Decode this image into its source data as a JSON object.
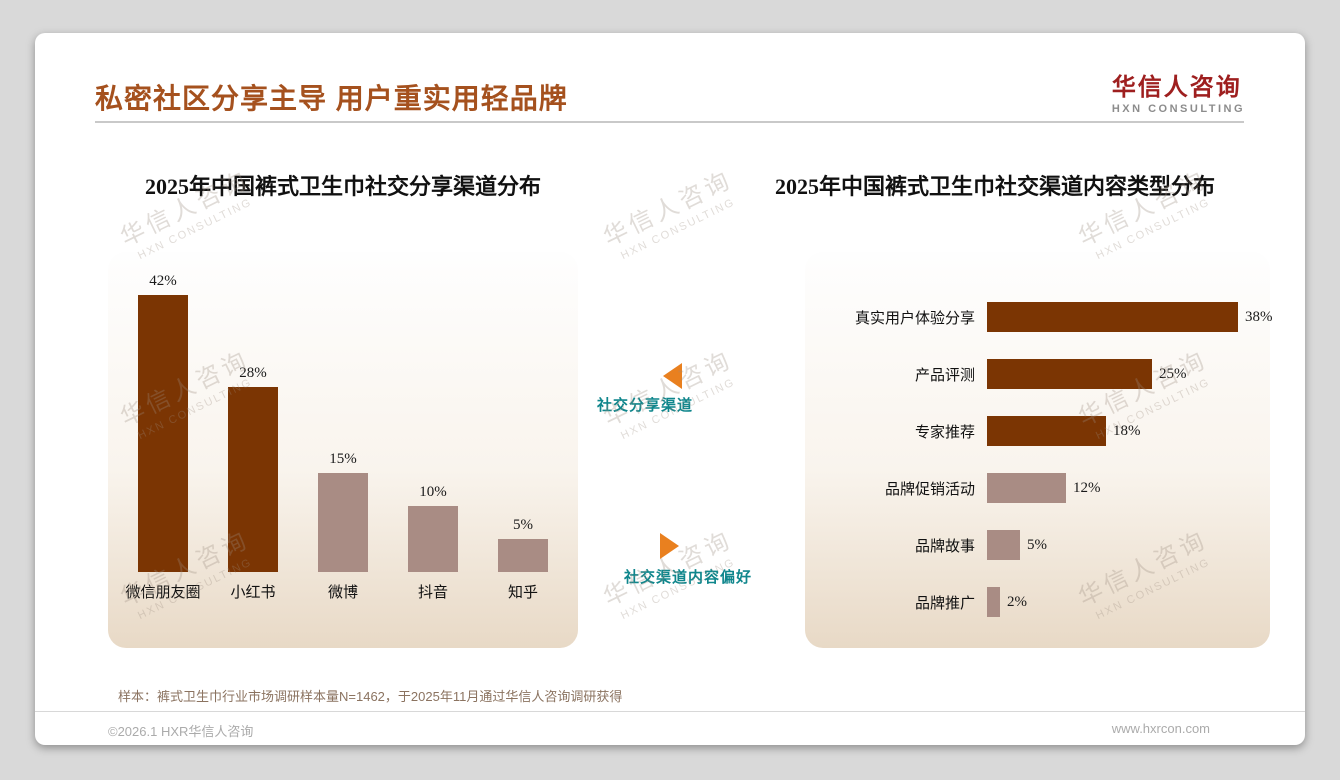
{
  "page": {
    "title": "私密社区分享主导 用户重实用轻品牌",
    "footnote": "样本：裤式卫生巾行业市场调研样本量N=1462，于2025年11月通过华信人咨询调研获得",
    "footer_left": "©2026.1 HXR华信人咨询",
    "footer_right": "www.hxrcon.com"
  },
  "logo": {
    "name": "华信人咨询",
    "subtitle": "HXN CONSULTING"
  },
  "watermark": {
    "line1": "华信人咨询",
    "line2": "HXN CONSULTING"
  },
  "annotations": {
    "left_label": "社交分享渠道",
    "right_label": "社交渠道内容偏好"
  },
  "colors": {
    "title_brown": "#A5511E",
    "bar_dark": "#7B3503",
    "bar_light": "#A98C84",
    "annotation_teal": "#0F868C",
    "arrow_orange": "#E9801F",
    "logo_red": "#9E1F1F"
  },
  "chart_data": [
    {
      "type": "bar",
      "title": "2025年中国裤式卫生巾社交分享渠道分布",
      "categories": [
        "微信朋友圈",
        "小红书",
        "微博",
        "抖音",
        "知乎"
      ],
      "values": [
        42,
        28,
        15,
        10,
        5
      ],
      "value_labels": [
        "42%",
        "28%",
        "15%",
        "10%",
        "5%"
      ],
      "bar_colors": [
        "dark",
        "dark",
        "light",
        "light",
        "light"
      ],
      "unit": "%",
      "ylim": [
        0,
        45
      ],
      "grid": false,
      "legend": false
    },
    {
      "type": "bar",
      "orientation": "horizontal",
      "title": "2025年中国裤式卫生巾社交渠道内容类型分布",
      "categories": [
        "真实用户体验分享",
        "产品评测",
        "专家推荐",
        "品牌促销活动",
        "品牌故事",
        "品牌推广"
      ],
      "values": [
        38,
        25,
        18,
        12,
        5,
        2
      ],
      "value_labels": [
        "38%",
        "25%",
        "18%",
        "12%",
        "5%",
        "2%"
      ],
      "bar_colors": [
        "dark",
        "dark",
        "dark",
        "light",
        "light",
        "light"
      ],
      "unit": "%",
      "xlim": [
        0,
        42
      ],
      "grid": false,
      "legend": false
    }
  ]
}
